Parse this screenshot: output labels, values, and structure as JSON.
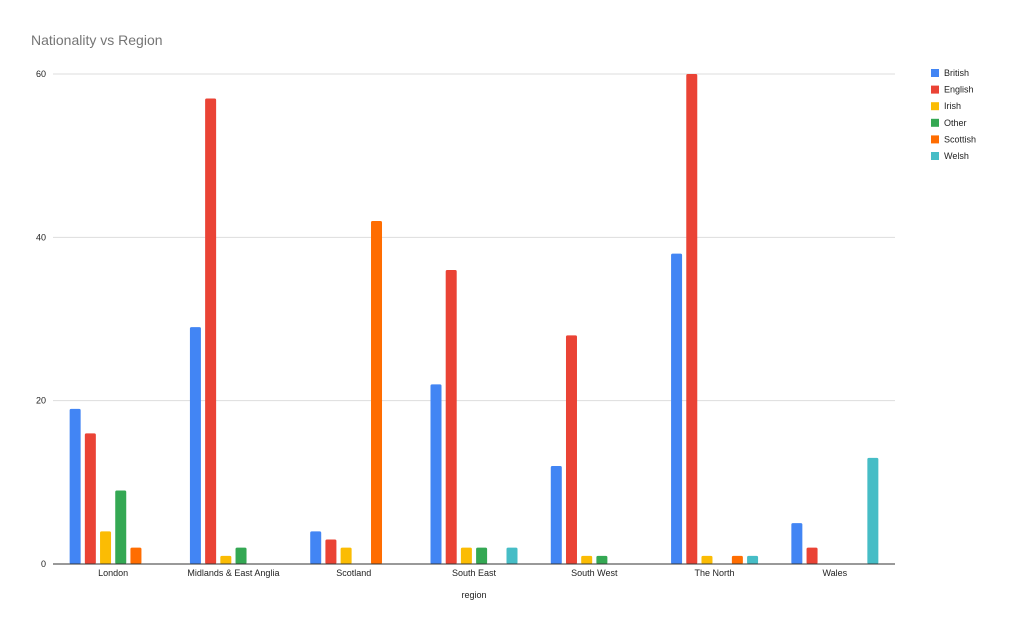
{
  "chart_data": {
    "type": "bar",
    "title": "Nationality vs Region",
    "xlabel": "region",
    "ylabel": "",
    "ylim": [
      0,
      60
    ],
    "yticks": [
      0,
      20,
      40,
      60
    ],
    "grid": true,
    "legend_position": "right",
    "categories": [
      "London",
      "Midlands & East Anglia",
      "Scotland",
      "South East",
      "South West",
      "The North",
      "Wales"
    ],
    "series": [
      {
        "name": "British",
        "color": "#4285F4",
        "values": [
          19,
          29,
          4,
          22,
          12,
          38,
          5
        ]
      },
      {
        "name": "English",
        "color": "#EA4335",
        "values": [
          16,
          57,
          3,
          36,
          28,
          60,
          2
        ]
      },
      {
        "name": "Irish",
        "color": "#FBBC04",
        "values": [
          4,
          1,
          2,
          2,
          1,
          1,
          0
        ]
      },
      {
        "name": "Other",
        "color": "#34A853",
        "values": [
          9,
          2,
          0,
          2,
          1,
          0,
          0
        ]
      },
      {
        "name": "Scottish",
        "color": "#FF6D01",
        "values": [
          2,
          0,
          42,
          0,
          0,
          1,
          0
        ]
      },
      {
        "name": "Welsh",
        "color": "#46BDC6",
        "values": [
          0,
          0,
          0,
          2,
          0,
          1,
          13
        ]
      }
    ]
  }
}
